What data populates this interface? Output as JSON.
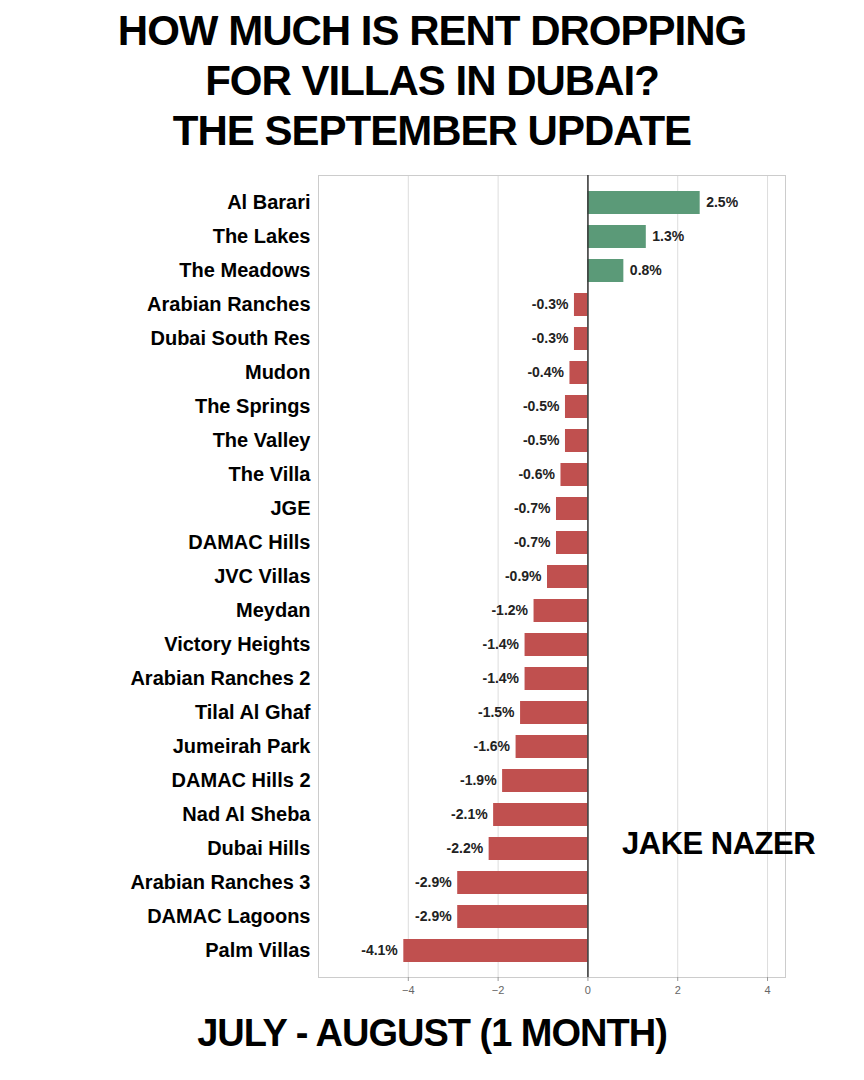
{
  "chart_data": {
    "type": "bar",
    "orientation": "horizontal",
    "title": "HOW MUCH IS RENT DROPPING FOR VILLAS IN DUBAI?",
    "subtitle": "THE SEPTEMBER UPDATE",
    "xlabel": "JULY - AUGUST (1 MONTH)",
    "annotation": "JAKE NAZER",
    "categories": [
      "Al Barari",
      "The Lakes",
      "The Meadows",
      "Arabian Ranches",
      "Dubai South Res",
      "Mudon",
      "The Springs",
      "The Valley",
      "The Villa",
      "JGE",
      "DAMAC Hills",
      "JVC Villas",
      "Meydan",
      "Victory Heights",
      "Arabian Ranches 2",
      "Tilal Al Ghaf",
      "Jumeirah Park",
      "DAMAC Hills 2",
      "Nad Al Sheba",
      "Dubai Hills",
      "Arabian Ranches 3",
      "DAMAC Lagoons",
      "Palm Villas"
    ],
    "values": [
      2.5,
      1.3,
      0.8,
      -0.3,
      -0.3,
      -0.4,
      -0.5,
      -0.5,
      -0.6,
      -0.7,
      -0.7,
      -0.9,
      -1.2,
      -1.4,
      -1.4,
      -1.5,
      -1.6,
      -1.9,
      -2.1,
      -2.2,
      -2.9,
      -2.9,
      -4.1
    ],
    "value_labels": [
      "2.5%",
      "1.3%",
      "0.8%",
      "-0.3%",
      "-0.3%",
      "-0.4%",
      "-0.5%",
      "-0.5%",
      "-0.6%",
      "-0.7%",
      "-0.7%",
      "-0.9%",
      "-1.2%",
      "-1.4%",
      "-1.4%",
      "-1.5%",
      "-1.6%",
      "-1.9%",
      "-2.1%",
      "-2.2%",
      "-2.9%",
      "-2.9%",
      "-4.1%"
    ],
    "colors": [
      "#5b9a78",
      "#5b9a78",
      "#5b9a78",
      "#c0504f",
      "#c0504f",
      "#c0504f",
      "#c0504f",
      "#c0504f",
      "#c0504f",
      "#c0504f",
      "#c0504f",
      "#c0504f",
      "#c0504f",
      "#c0504f",
      "#c0504f",
      "#c0504f",
      "#c0504f",
      "#c0504f",
      "#c0504f",
      "#c0504f",
      "#c0504f",
      "#c0504f",
      "#c0504f"
    ],
    "xlim": [
      -6,
      4.4
    ],
    "xticks": [
      {
        "value": -4,
        "label": "−4"
      },
      {
        "value": -2,
        "label": "−2"
      },
      0,
      2,
      4
    ],
    "grid": true,
    "data_labels": true
  }
}
